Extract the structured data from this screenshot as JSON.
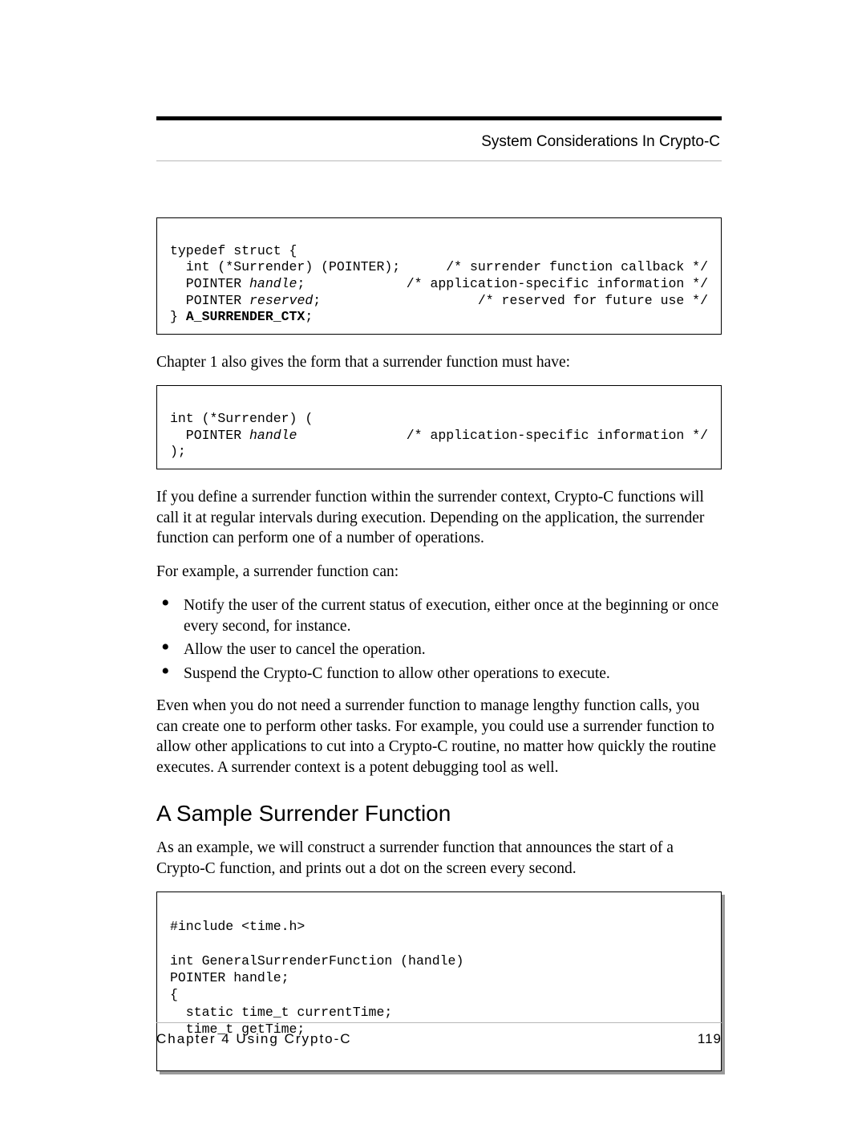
{
  "header": {
    "title": "System Considerations In Crypto-C"
  },
  "code1": {
    "l1": "typedef struct {",
    "l2_left": "  int (*Surrender) (POINTER);",
    "l2_right": "/* surrender function callback */",
    "l3_left_a": "  POINTER ",
    "l3_left_b": "handle",
    "l3_left_c": ";",
    "l3_right": "/* application-specific information */",
    "l4_left_a": "  POINTER ",
    "l4_left_b": "reserved",
    "l4_left_c": ";",
    "l4_right": "/* reserved for future use */",
    "l5_a": "} ",
    "l5_b": "A_SURRENDER_CTX",
    "l5_c": ";"
  },
  "para1": "Chapter 1 also gives the form that a surrender function must have:",
  "code2": {
    "l1": "int (*Surrender) (",
    "l2_left_a": "  POINTER ",
    "l2_left_b": "handle",
    "l2_right": "/* application-specific information */",
    "l3": ");"
  },
  "para2": "If you define a surrender function within the surrender context, Crypto-C functions will call it at regular intervals during execution. Depending on the application, the surrender function can perform one of a number of operations.",
  "para3": "For example, a surrender function can:",
  "bullets": [
    "Notify the user of the current status of execution, either once at the beginning or once every second, for instance.",
    "Allow the user to cancel the operation.",
    "Suspend the Crypto-C function to allow other operations to execute."
  ],
  "para4": "Even when you do not need a surrender function to manage lengthy function calls, you can create one to perform other tasks. For example, you could use a surrender function to allow other applications to cut into a Crypto-C routine, no matter how quickly the routine executes. A surrender context is a potent debugging tool as well.",
  "section_heading": "A Sample Surrender Function",
  "para5": "As an example, we will construct a surrender function that announces the start of a Crypto-C function, and prints out a dot on the screen every second.",
  "code3": {
    "l1": "#include <time.h>",
    "l2": "",
    "l3": "int GeneralSurrenderFunction (handle)",
    "l4": "POINTER handle;",
    "l5": "{",
    "l6": "  static time_t currentTime;",
    "l7": "  time_t getTime;"
  },
  "footer": {
    "chapter": "Chapter 4  Using Crypto-C",
    "page": "119"
  }
}
